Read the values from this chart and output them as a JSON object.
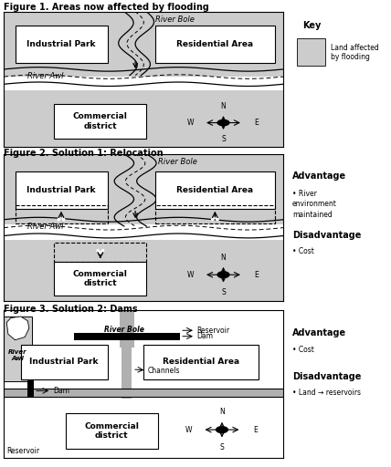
{
  "fig_title1": "Figure 1. Areas now affected by flooding",
  "fig_title2": "Figure 2. Solution 1: Relocation",
  "fig_title3": "Figure 3. Solution 2: Dams",
  "bg_color": "#ffffff",
  "flood_color": "#cccccc",
  "key_text": "Key",
  "key_sub": "Land affected\nby flooding",
  "adv1_title": "Advantage",
  "adv1_bullets": [
    "River\nenvironment\nmaintained"
  ],
  "dis1_title": "Disadvantage",
  "dis1_bullets": [
    "Cost"
  ],
  "adv2_title": "Advantage",
  "adv2_bullets": [
    "Cost"
  ],
  "dis2_title": "Disadvantage",
  "dis2_bullets": [
    "Land → reservoirs"
  ]
}
